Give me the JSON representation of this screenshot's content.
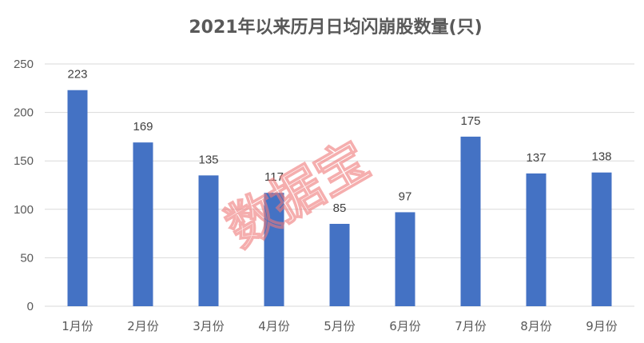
{
  "chart_data": {
    "type": "bar",
    "title": "2021年以来历月日均闪崩股数量(只)",
    "categories": [
      "1月份",
      "2月份",
      "3月份",
      "4月份",
      "5月份",
      "6月份",
      "7月份",
      "8月份",
      "9月份"
    ],
    "values": [
      223,
      169,
      135,
      117,
      85,
      97,
      175,
      137,
      138
    ],
    "ylim": [
      0,
      250
    ],
    "yticks": [
      0,
      50,
      100,
      150,
      200,
      250
    ],
    "grid": true,
    "legend": "none",
    "bar_color": "#4472C4",
    "grid_color": "#d9d9d9"
  },
  "watermark": "数据宝"
}
